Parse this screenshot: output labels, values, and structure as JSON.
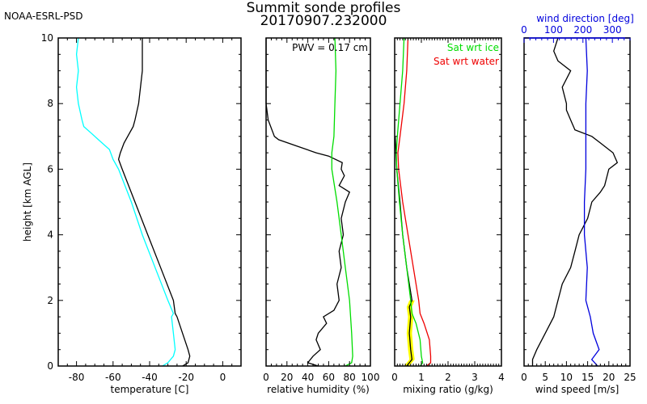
{
  "header": {
    "org": "NOAA-ESRL-PSD",
    "title_line1": "Summit sonde profiles",
    "title_line2": "20170907.232000"
  },
  "colors": {
    "temperature": "#000000",
    "dewpoint": "#00ffff",
    "rh": "#000000",
    "rh_ice": "#00dd00",
    "mr": "#000000",
    "mr_uncert": "#ffff00",
    "sat_ice": "#00dd00",
    "sat_water": "#ee0000",
    "wind_speed": "#000000",
    "wind_dir": "#0000dd"
  },
  "chart_data": [
    {
      "type": "line",
      "id": "temperature",
      "xlabel": "temperature [C]",
      "ylabel": "height [km AGL]",
      "xlim": [
        -90,
        10
      ],
      "ylim": [
        0,
        10
      ],
      "xticks": [
        -80,
        -60,
        -40,
        -20,
        0
      ],
      "yticks": [
        0,
        2,
        4,
        6,
        8,
        10
      ],
      "series": [
        {
          "name": "temperature",
          "color_key": "temperature",
          "h": [
            0,
            0.1,
            0.3,
            0.5,
            1.0,
            1.5,
            1.6,
            2.0,
            3.0,
            4.0,
            5.0,
            6.0,
            6.3,
            6.5,
            6.8,
            7.0,
            7.3,
            7.5,
            8.0,
            8.5,
            9.0,
            9.5,
            10.0
          ],
          "x": [
            -22,
            -19,
            -18,
            -19,
            -22,
            -25,
            -26,
            -27,
            -34,
            -41,
            -48,
            -55,
            -57,
            -56,
            -54,
            -52,
            -49,
            -48,
            -46,
            -45,
            -44,
            -44,
            -44
          ]
        },
        {
          "name": "dewpoint",
          "color_key": "dewpoint",
          "h": [
            0,
            0.1,
            0.3,
            0.5,
            1.0,
            1.5,
            1.6,
            2.0,
            3.0,
            4.0,
            5.0,
            6.0,
            6.3,
            6.6,
            6.9,
            7.1,
            7.3,
            7.5,
            8.0,
            8.5,
            9.0,
            9.5,
            10.0
          ],
          "x": [
            -33,
            -30,
            -27,
            -26,
            -27,
            -28,
            -27,
            -30,
            -37,
            -44,
            -50,
            -57,
            -60,
            -62,
            -68,
            -72,
            -76,
            -77,
            -79,
            -80,
            -79,
            -80,
            -79
          ]
        }
      ]
    },
    {
      "type": "line",
      "id": "relative_humidity",
      "xlabel": "relative humidity (%)",
      "xlim": [
        0,
        100
      ],
      "ylim": [
        0,
        10
      ],
      "xticks": [
        0,
        20,
        40,
        60,
        80,
        100
      ],
      "annotation": "PWV = 0.17 cm",
      "series": [
        {
          "name": "RH",
          "color_key": "rh",
          "h": [
            0,
            0.1,
            0.3,
            0.5,
            0.8,
            1.0,
            1.3,
            1.5,
            1.7,
            2.0,
            2.5,
            3.0,
            3.5,
            4.0,
            4.5,
            5.0,
            5.3,
            5.5,
            5.8,
            6.0,
            6.2,
            6.4,
            6.5,
            6.7,
            6.9,
            7.0,
            7.5,
            8.0,
            9.0,
            10.0
          ],
          "x": [
            50,
            40,
            45,
            52,
            48,
            50,
            58,
            55,
            65,
            70,
            68,
            72,
            70,
            74,
            72,
            76,
            80,
            70,
            75,
            72,
            73,
            60,
            48,
            30,
            12,
            8,
            2,
            0,
            0,
            0
          ]
        },
        {
          "name": "RH wrt ice",
          "color_key": "rh_ice",
          "h": [
            0,
            0.1,
            0.3,
            1.0,
            2.0,
            3.0,
            4.0,
            5.0,
            6.0,
            6.5,
            7.0,
            8.0,
            9.0,
            10.0
          ],
          "x": [
            76,
            82,
            83,
            82,
            80,
            76,
            72,
            68,
            63,
            63,
            65,
            66,
            67,
            66
          ]
        }
      ]
    },
    {
      "type": "line",
      "id": "mixing_ratio",
      "xlabel": "mixing ratio (g/kg)",
      "xlim": [
        0,
        4
      ],
      "ylim": [
        0,
        10
      ],
      "xticks": [
        0,
        1,
        2,
        3,
        4
      ],
      "legend": [
        "Sat wrt ice",
        "Sat wrt water"
      ],
      "legend_position": "top-right",
      "series": [
        {
          "name": "mixing ratio",
          "color_key": "mr",
          "h": [
            0,
            0.2,
            0.5,
            1.0,
            1.5,
            1.8,
            2.0,
            3.0,
            4.0,
            5.0,
            6.0,
            6.5,
            7.0
          ],
          "x": [
            0.45,
            0.65,
            0.6,
            0.55,
            0.6,
            0.55,
            0.65,
            0.45,
            0.3,
            0.2,
            0.08,
            0.05,
            0.02
          ]
        },
        {
          "name": "Sat wrt ice",
          "color_key": "sat_ice",
          "h": [
            0,
            0.1,
            0.3,
            0.8,
            1.3,
            1.6,
            2.0,
            3.0,
            4.0,
            5.0,
            6.0,
            6.5,
            7.0,
            8.0,
            9.0,
            10.0
          ],
          "x": [
            0.95,
            1.05,
            1.0,
            0.95,
            0.8,
            0.65,
            0.6,
            0.45,
            0.3,
            0.18,
            0.08,
            0.06,
            0.1,
            0.2,
            0.3,
            0.35
          ]
        },
        {
          "name": "Sat wrt water",
          "color_key": "sat_water",
          "h": [
            0,
            0.1,
            0.3,
            0.8,
            1.3,
            1.6,
            2.0,
            3.0,
            4.0,
            5.0,
            6.0,
            6.5,
            7.0,
            8.0,
            9.0,
            10.0
          ],
          "x": [
            1.2,
            1.35,
            1.35,
            1.3,
            1.1,
            0.95,
            0.9,
            0.7,
            0.5,
            0.3,
            0.15,
            0.12,
            0.2,
            0.35,
            0.45,
            0.5
          ]
        }
      ]
    },
    {
      "type": "line",
      "id": "wind",
      "xlabel": "wind speed [m/s]",
      "x2label": "wind direction [deg]",
      "xlim": [
        0,
        25
      ],
      "x2lim": [
        0,
        360
      ],
      "ylim": [
        0,
        10
      ],
      "xticks": [
        0,
        5,
        10,
        15,
        20,
        25
      ],
      "x2ticks": [
        0,
        100,
        200,
        300
      ],
      "series": [
        {
          "name": "wind speed",
          "color_key": "wind_speed",
          "axis": "bottom",
          "h": [
            0,
            0.2,
            0.5,
            1.0,
            1.5,
            2.0,
            2.5,
            3.0,
            3.5,
            4.0,
            4.5,
            5.0,
            5.3,
            5.5,
            6.0,
            6.2,
            6.5,
            6.8,
            7.0,
            7.2,
            7.5,
            7.8,
            8.0,
            8.5,
            9.0,
            9.3,
            9.6,
            10.0
          ],
          "x": [
            2,
            2,
            3,
            5,
            7,
            8,
            9,
            11,
            12,
            13,
            15,
            16,
            18,
            19,
            20,
            22,
            21,
            18,
            16,
            12,
            11,
            10,
            10,
            9,
            11,
            8,
            7,
            8
          ]
        },
        {
          "name": "wind direction",
          "color_key": "wind_dir",
          "axis": "top",
          "h": [
            0,
            0.2,
            0.5,
            1.0,
            1.5,
            2.0,
            3.0,
            4.0,
            5.0,
            6.0,
            7.0,
            8.0,
            9.0,
            10.0
          ],
          "x": [
            250,
            230,
            255,
            235,
            225,
            210,
            215,
            205,
            205,
            210,
            210,
            210,
            215,
            210
          ]
        }
      ]
    }
  ]
}
